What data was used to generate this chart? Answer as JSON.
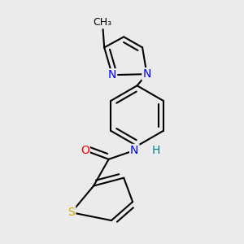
{
  "background_color": "#ebebeb",
  "bond_color": "black",
  "bond_lw": 1.5,
  "dbo": 0.018,
  "atom_colors": {
    "N": "#0000ff",
    "O": "#ff0000",
    "S": "#ccaa00",
    "H": "#008080"
  },
  "font_size": 10,
  "bg": "#ebebeb"
}
